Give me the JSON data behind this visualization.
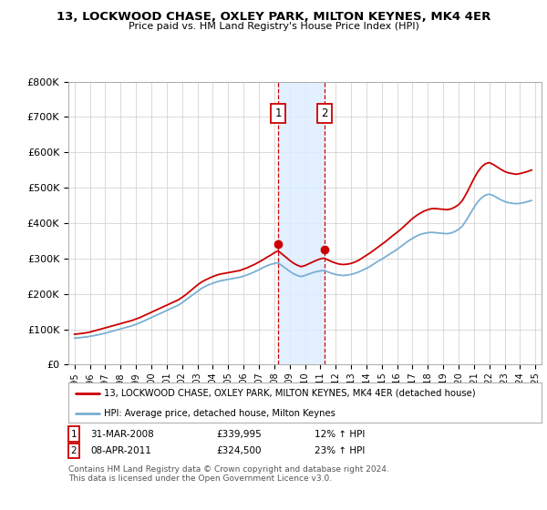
{
  "title": "13, LOCKWOOD CHASE, OXLEY PARK, MILTON KEYNES, MK4 4ER",
  "subtitle": "Price paid vs. HM Land Registry's House Price Index (HPI)",
  "ylim": [
    0,
    800000
  ],
  "yticks": [
    0,
    100000,
    200000,
    300000,
    400000,
    500000,
    600000,
    700000,
    800000
  ],
  "ytick_labels": [
    "£0",
    "£100K",
    "£200K",
    "£300K",
    "£400K",
    "£500K",
    "£600K",
    "£700K",
    "£800K"
  ],
  "sale1_date": 2008.25,
  "sale1_price": 339995,
  "sale1_label": "1",
  "sale2_date": 2011.27,
  "sale2_price": 324500,
  "sale2_label": "2",
  "red_color": "#cc0000",
  "blue_color": "#7aafd4",
  "shade_color": "#ddeeff",
  "legend_entry1": "13, LOCKWOOD CHASE, OXLEY PARK, MILTON KEYNES, MK4 4ER (detached house)",
  "legend_entry2": "HPI: Average price, detached house, Milton Keynes",
  "table_row1": [
    "1",
    "31-MAR-2008",
    "£339,995",
    "12% ↑ HPI"
  ],
  "table_row2": [
    "2",
    "08-APR-2011",
    "£324,500",
    "23% ↑ HPI"
  ],
  "footnote": "Contains HM Land Registry data © Crown copyright and database right 2024.\nThis data is licensed under the Open Government Licence v3.0.",
  "background_color": "#ffffff",
  "hpi_years": [
    1995.0,
    1995.25,
    1995.5,
    1995.75,
    1996.0,
    1996.25,
    1996.5,
    1996.75,
    1997.0,
    1997.25,
    1997.5,
    1997.75,
    1998.0,
    1998.25,
    1998.5,
    1998.75,
    1999.0,
    1999.25,
    1999.5,
    1999.75,
    2000.0,
    2000.25,
    2000.5,
    2000.75,
    2001.0,
    2001.25,
    2001.5,
    2001.75,
    2002.0,
    2002.25,
    2002.5,
    2002.75,
    2003.0,
    2003.25,
    2003.5,
    2003.75,
    2004.0,
    2004.25,
    2004.5,
    2004.75,
    2005.0,
    2005.25,
    2005.5,
    2005.75,
    2006.0,
    2006.25,
    2006.5,
    2006.75,
    2007.0,
    2007.25,
    2007.5,
    2007.75,
    2008.0,
    2008.25,
    2008.5,
    2008.75,
    2009.0,
    2009.25,
    2009.5,
    2009.75,
    2010.0,
    2010.25,
    2010.5,
    2010.75,
    2011.0,
    2011.25,
    2011.5,
    2011.75,
    2012.0,
    2012.25,
    2012.5,
    2012.75,
    2013.0,
    2013.25,
    2013.5,
    2013.75,
    2014.0,
    2014.25,
    2014.5,
    2014.75,
    2015.0,
    2015.25,
    2015.5,
    2015.75,
    2016.0,
    2016.25,
    2016.5,
    2016.75,
    2017.0,
    2017.25,
    2017.5,
    2017.75,
    2018.0,
    2018.25,
    2018.5,
    2018.75,
    2019.0,
    2019.25,
    2019.5,
    2019.75,
    2020.0,
    2020.25,
    2020.5,
    2020.75,
    2021.0,
    2021.25,
    2021.5,
    2021.75,
    2022.0,
    2022.25,
    2022.5,
    2022.75,
    2023.0,
    2023.25,
    2023.5,
    2023.75,
    2024.0,
    2024.25,
    2024.5,
    2024.75
  ],
  "hpi_values": [
    75000,
    76000,
    77000,
    78500,
    80000,
    82000,
    84000,
    86500,
    89000,
    92000,
    95000,
    98000,
    101000,
    104000,
    107000,
    110000,
    114000,
    118000,
    123000,
    128000,
    133000,
    138000,
    143000,
    148000,
    153000,
    158000,
    163000,
    168000,
    175000,
    183000,
    191000,
    199000,
    207000,
    215000,
    221000,
    226000,
    230000,
    234000,
    237000,
    239000,
    241000,
    243000,
    245000,
    247000,
    250000,
    254000,
    258000,
    263000,
    268000,
    274000,
    279000,
    283000,
    286000,
    288000,
    280000,
    272000,
    264000,
    257000,
    252000,
    249000,
    252000,
    256000,
    260000,
    263000,
    265000,
    266000,
    262000,
    258000,
    255000,
    253000,
    252000,
    253000,
    255000,
    258000,
    262000,
    267000,
    272000,
    278000,
    285000,
    292000,
    298000,
    305000,
    312000,
    319000,
    326000,
    334000,
    342000,
    350000,
    357000,
    363000,
    368000,
    371000,
    373000,
    374000,
    373000,
    372000,
    371000,
    370000,
    372000,
    376000,
    382000,
    392000,
    408000,
    426000,
    444000,
    460000,
    472000,
    479000,
    482000,
    478000,
    472000,
    466000,
    461000,
    458000,
    456000,
    455000,
    456000,
    458000,
    461000,
    464000
  ],
  "prop_values": [
    86000,
    87000,
    88500,
    90000,
    92000,
    95000,
    98000,
    101000,
    104000,
    107000,
    110000,
    113000,
    116000,
    119000,
    122000,
    125000,
    129000,
    133000,
    138000,
    143000,
    148000,
    153000,
    158000,
    163000,
    168000,
    173000,
    178000,
    183000,
    190000,
    198000,
    207000,
    216000,
    225000,
    233000,
    239000,
    244000,
    249000,
    253000,
    256000,
    258000,
    260000,
    262000,
    264000,
    266000,
    270000,
    274000,
    279000,
    284000,
    290000,
    296000,
    303000,
    309000,
    316000,
    322000,
    313000,
    304000,
    295000,
    287000,
    281000,
    277000,
    280000,
    285000,
    290000,
    295000,
    299000,
    301000,
    296000,
    291000,
    287000,
    284000,
    283000,
    284000,
    286000,
    290000,
    295000,
    302000,
    309000,
    316000,
    324000,
    332000,
    340000,
    348000,
    357000,
    366000,
    374000,
    383000,
    393000,
    403000,
    413000,
    421000,
    428000,
    434000,
    438000,
    441000,
    441000,
    440000,
    439000,
    438000,
    440000,
    445000,
    452000,
    464000,
    483000,
    504000,
    526000,
    545000,
    559000,
    568000,
    571000,
    566000,
    559000,
    552000,
    546000,
    542000,
    540000,
    538000,
    540000,
    543000,
    546000,
    550000
  ]
}
